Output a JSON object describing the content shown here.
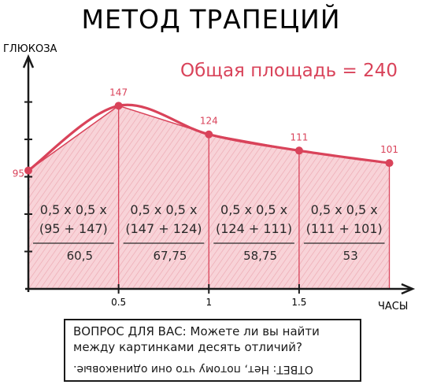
{
  "title": "МЕТОД ТРАПЕЦИЙ",
  "total_area": "Общая площадь = 240",
  "colors": {
    "accent": "#d9435a",
    "fill": "#f6c9cf",
    "axis": "#1a1a1a"
  },
  "chart_data": {
    "type": "area",
    "xlabel": "ЧАСЫ",
    "ylabel": "ГЛЮКОЗА",
    "x": [
      0,
      0.5,
      1,
      1.5,
      2
    ],
    "y": [
      95,
      147,
      124,
      111,
      101
    ],
    "point_labels": [
      "95",
      "147",
      "124",
      "111",
      "101"
    ],
    "xticks": [
      "0.5",
      "1",
      "1.5"
    ],
    "xlim": [
      0,
      2.05
    ],
    "ylim": [
      0,
      175
    ],
    "grid": false,
    "trapezoids": [
      {
        "formula_line1": "0,5 x 0,5 x",
        "formula_line2": "(95 + 147)",
        "result": "60,5"
      },
      {
        "formula_line1": "0,5 x 0,5 x",
        "formula_line2": "(147 + 124)",
        "result": "67,75"
      },
      {
        "formula_line1": "0,5 x 0,5 x",
        "formula_line2": "(124 + 111)",
        "result": "58,75"
      },
      {
        "formula_line1": "0,5 x 0,5 x",
        "formula_line2": "(111 + 101)",
        "result": "53"
      }
    ]
  },
  "question_box": {
    "question": "ВОПРОС ДЛЯ ВАС: Можете ли вы найти\nмежду картинками десять отличий?",
    "answer": "ОТВЕТ: Нет, потому что они одинаковые."
  }
}
